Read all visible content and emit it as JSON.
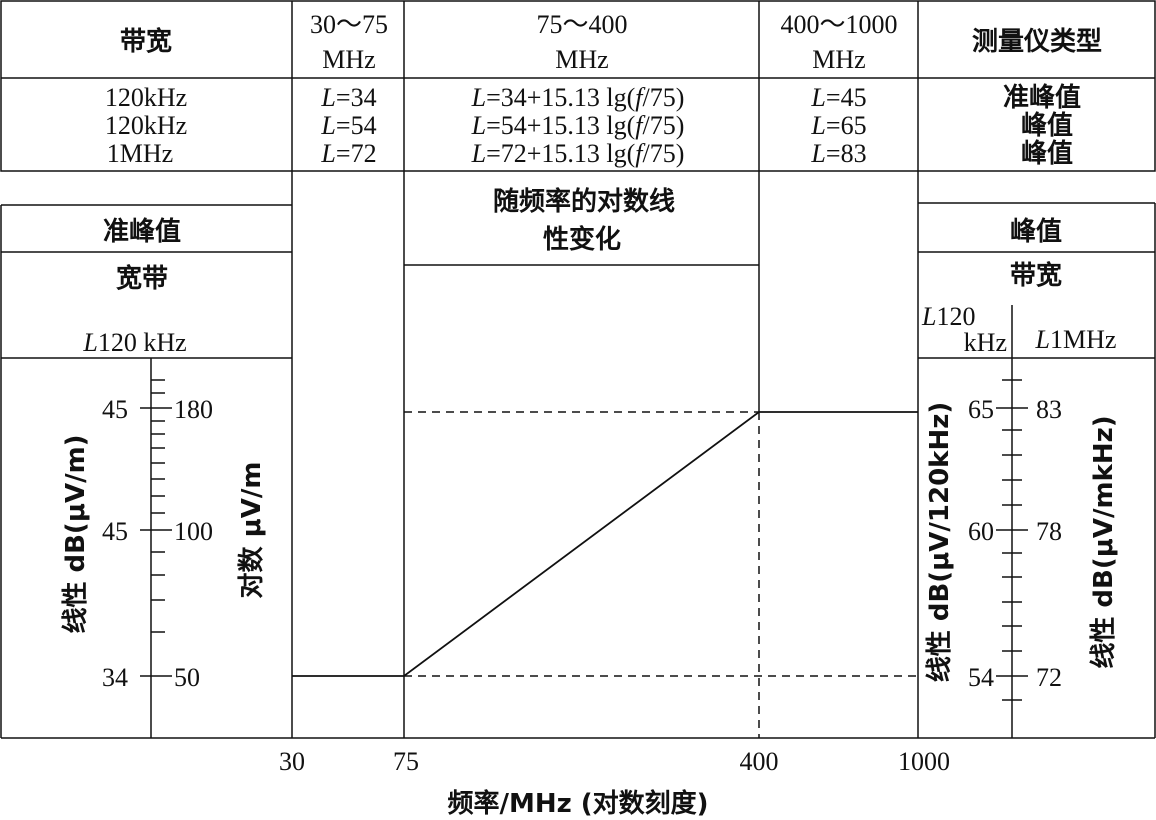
{
  "table": {
    "headers": [
      "带宽",
      "30～75",
      "MHz",
      "75～400",
      "MHz",
      "400～1000",
      "MHz",
      "测量仪类型"
    ],
    "rows": [
      {
        "bandwidth": "120kHz",
        "L_30_75": "34",
        "L_75_400": "34+15.13 lg(",
        "L_400_1000": "45",
        "type": "准峰值"
      },
      {
        "bandwidth": "120kHz",
        "L_30_75": "54",
        "L_75_400": "54+15.13 lg(",
        "L_400_1000": "65",
        "type": "峰值"
      },
      {
        "bandwidth": "1MHz",
        "L_30_75": "72",
        "L_75_400": "72+15.13 lg(",
        "L_400_1000": "83",
        "type": "峰值"
      }
    ],
    "L_symbol": "L",
    "eq": "=",
    "f_symbol": "f",
    "f_suffix": "/75)"
  },
  "chart": {
    "middle_label_line1": "随频率的对数线",
    "middle_label_line2": "性变化",
    "left_panel": {
      "title": "准峰值",
      "subtitle": "宽带",
      "unit_L": "L",
      "unit_rest": "120 kHz"
    },
    "right_panel": {
      "title": "峰值",
      "subtitle": "带宽",
      "col1_L": "L",
      "col1_rest": "120",
      "col1_line2": "kHz",
      "col2_L": "L",
      "col2_rest": "1MHz"
    },
    "left_axis_label": "线性 dB(μV/m)",
    "left_axis2_label": "对数 μV/m",
    "right_axis1_label": "线性 dB(μV/120kHz)",
    "right_axis2_label": "线性 dB(μV/mkHz)",
    "left_ticks_db": [
      "45",
      "45",
      "34"
    ],
    "left_ticks_uv": [
      "180",
      "100",
      "50"
    ],
    "right_ticks_1": [
      "65",
      "60",
      "54"
    ],
    "right_ticks_2": [
      "83",
      "78",
      "72"
    ],
    "x_ticks": [
      "30",
      "75",
      "400",
      "1000"
    ],
    "x_label": "频率/MHz (对数刻度)"
  },
  "chart_data": {
    "type": "line",
    "x": [
      30,
      75,
      400,
      1000
    ],
    "series": [
      {
        "values": [
          34,
          34,
          45,
          45
        ]
      }
    ],
    "xlabel": "频率/MHz (对数刻度)",
    "ylabel": "线性 dB(μV/m)"
  }
}
